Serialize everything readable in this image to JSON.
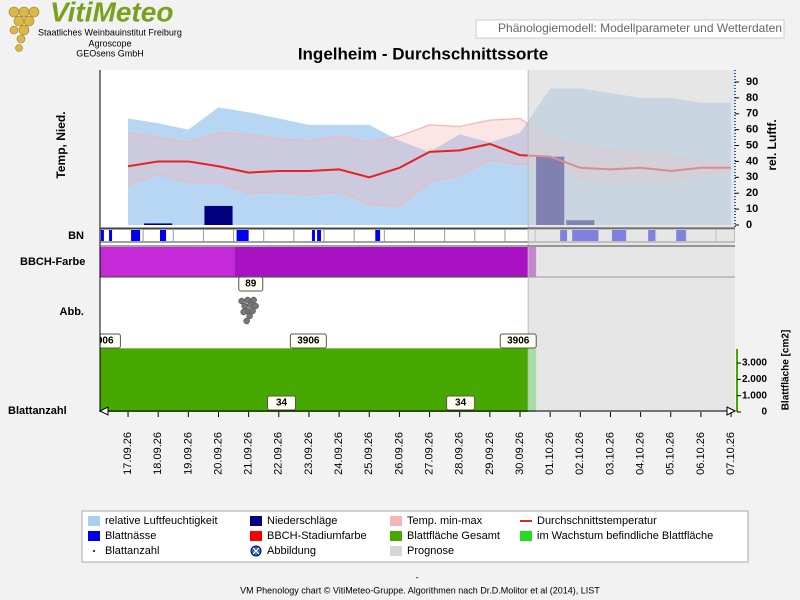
{
  "header": {
    "logo": "VitiMeteo",
    "org_lines": [
      "Staatliches Weinbauinstitut Freiburg",
      "Agroscope",
      "GEOsens GmbH"
    ],
    "model_label": "Phänologiemodell: Modellparameter und Wetterdaten"
  },
  "chart_data": {
    "type": "phenology",
    "title": "Ingelheim - Durchschnittssorte",
    "categories": [
      "17.09.26",
      "18.09.26",
      "19.09.26",
      "20.09.26",
      "21.09.26",
      "22.09.26",
      "23.09.26",
      "24.09.26",
      "25.09.26",
      "26.09.26",
      "27.09.26",
      "28.09.26",
      "29.09.26",
      "30.09.26",
      "01.10.26",
      "02.10.26",
      "03.10.26",
      "04.10.26",
      "05.10.26",
      "06.10.26",
      "07.10.26"
    ],
    "xlim": [
      -0.93,
      20.13
    ],
    "y_label": "Temp, Nied.",
    "ylim": [
      0,
      90
    ],
    "y2_label": "rel. Luftf.",
    "y2lim": [
      0,
      90
    ],
    "y2ticks": [
      0,
      10,
      20,
      30,
      40,
      50,
      60,
      70,
      80,
      90
    ],
    "humidity": {
      "name": "relative Luftfeuchtigkeit",
      "color": "#a9cff2",
      "axis": "y2",
      "values": [
        67,
        64,
        60,
        74,
        71,
        67,
        63,
        63,
        63,
        53,
        46,
        57,
        52,
        58,
        86,
        86,
        83,
        80,
        80,
        77,
        77
      ]
    },
    "precipitation": {
      "name": "Niederschläge",
      "color": "#000080",
      "values": [
        0,
        1,
        0,
        12,
        0,
        0,
        0,
        0,
        0,
        0,
        0,
        0,
        0,
        0,
        43,
        3,
        0,
        0,
        0,
        0,
        0
      ]
    },
    "temp_range": {
      "name": "Temp. min-max",
      "color": "#f5b5b5",
      "max": [
        58,
        55,
        52,
        58,
        57,
        54,
        53,
        56,
        52,
        56,
        63,
        62,
        66,
        67,
        54,
        50,
        47,
        45,
        43,
        40,
        36
      ],
      "min": [
        25,
        32,
        27,
        27,
        20,
        21,
        19,
        21,
        13,
        12,
        27,
        31,
        41,
        38,
        39,
        29,
        27,
        28,
        28,
        32,
        34
      ]
    },
    "temp_mean": {
      "name": "Durchschnittstemperatur",
      "color": "#e82020",
      "values": [
        37,
        40,
        40,
        37,
        33,
        34,
        34,
        35,
        30,
        36,
        46,
        47,
        51,
        44,
        43,
        36,
        35,
        36,
        34,
        36,
        36
      ]
    },
    "leaf_wetness": {
      "name": "Blattnässe",
      "label": "BN",
      "color": "#0000ee",
      "intervals": [
        [
          -0.9,
          -0.8
        ],
        [
          -0.63,
          -0.53
        ],
        [
          0.1,
          0.4
        ],
        [
          1.06,
          1.26
        ],
        [
          3.6,
          4.0
        ],
        [
          6.1,
          6.2
        ],
        [
          6.27,
          6.4
        ],
        [
          8.2,
          8.36
        ],
        [
          14.33,
          14.56
        ],
        [
          14.73,
          15.6
        ],
        [
          16.05,
          16.52
        ],
        [
          17.25,
          17.48
        ],
        [
          18.18,
          18.5
        ]
      ]
    },
    "bbch": {
      "name": "BBCH-Stadiumfarbe",
      "label": "BBCH-Farbe",
      "color": "#ff0000",
      "stage_colors": [
        "#c42ad8",
        "#a812c2"
      ],
      "change": 3.52,
      "stage": 89,
      "stage_x": 4.07
    },
    "picture": {
      "name": "Abbildung",
      "label": "Abb.",
      "x": 3.9
    },
    "leaf_area": {
      "name": "Blattfläche Gesamt",
      "color": "#46a800",
      "value": 3906,
      "labels_x": [
        -0.85,
        5.98,
        12.94
      ],
      "axis_label": "Blattfläche [cm2]",
      "y3lim": [
        0,
        4600
      ],
      "y3ticks": [
        0,
        {
          "value": 1000,
          "label": "1.000"
        },
        {
          "value": 2000,
          "label": "2.000"
        },
        {
          "value": 3000,
          "label": "3.000"
        }
      ]
    },
    "growing_leaf_area": {
      "name": "im Wachstum befindliche Blattfläche",
      "color": "#22dd22"
    },
    "leaf_count": {
      "name": "Blattanzahl",
      "value": 34,
      "labels_x": [
        5.09,
        11.03
      ]
    },
    "forecast": {
      "name": "Prognose",
      "color": "#d6d6d6",
      "start": 13.27
    }
  },
  "footer": {
    "separator": "-",
    "text": "VM Phenology chart © VitiMeteo-Gruppe. Algorithmen nach Dr.D.Molitor et al (2014), LIST"
  }
}
